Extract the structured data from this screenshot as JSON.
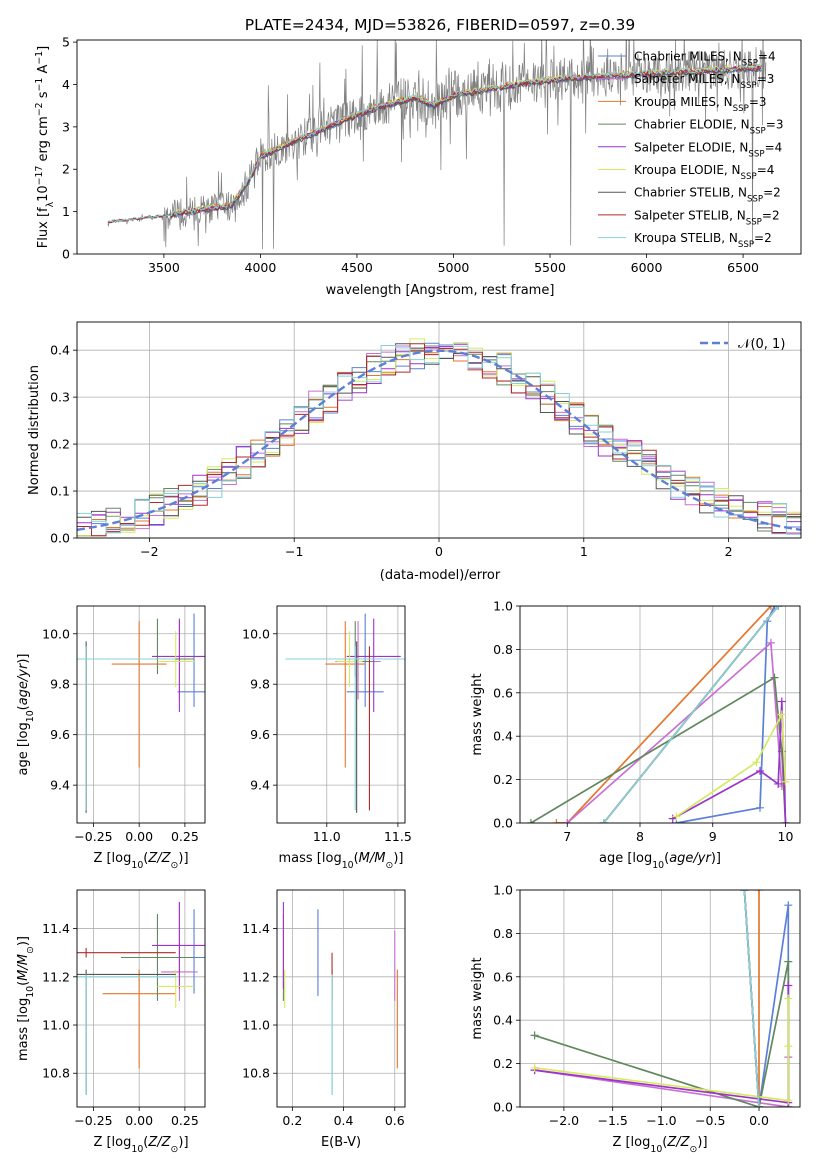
{
  "figure": {
    "title": "PLATE=2434, MJD=53826, FIBERID=0597, z=0.39"
  },
  "colors": [
    "#5b80d6",
    "#e3772e",
    "#c96fd6",
    "#62885e",
    "#9a35c9",
    "#d6ea61",
    "#555555",
    "#b02a2a",
    "#84d1d8"
  ],
  "chart_data": [
    {
      "id": "spectrum",
      "type": "line",
      "xlabel": "wavelength [Angstrom, rest frame]",
      "ylabel": "Flux [f_λ 10^-17 erg cm^-2 s^-1 A^-1]",
      "xlim": [
        3050,
        6800
      ],
      "ylim": [
        0,
        5.05
      ],
      "xticks": [
        3500,
        4000,
        4500,
        5000,
        5500,
        6000,
        6500
      ],
      "yticks": [
        0,
        1,
        2,
        3,
        4,
        5
      ],
      "legend_position": "right",
      "series": [
        {
          "name": "Chabrier MILES, N_SSP=4",
          "color": "#5b80d6"
        },
        {
          "name": "Salpeter MILES, N_SSP=3",
          "color": "#c96fd6"
        },
        {
          "name": "Kroupa MILES, N_SSP=3",
          "color": "#e3772e"
        },
        {
          "name": "Chabrier ELODIE, N_SSP=3",
          "color": "#62885e"
        },
        {
          "name": "Salpeter ELODIE, N_SSP=4",
          "color": "#9a35c9"
        },
        {
          "name": "Kroupa ELODIE, N_SSP=4",
          "color": "#d6ea61"
        },
        {
          "name": "Chabrier STELIB, N_SSP=2",
          "color": "#555555"
        },
        {
          "name": "Salpeter STELIB, N_SSP=2",
          "color": "#b02a2a"
        },
        {
          "name": "Kroupa STELIB, N_SSP=2",
          "color": "#84d1d8"
        }
      ],
      "continuum": {
        "x": [
          3200,
          3300,
          3500,
          3700,
          3850,
          3950,
          4000,
          4200,
          4400,
          4600,
          4800,
          4900,
          5000,
          5200,
          5400,
          5600,
          5800,
          6000,
          6200,
          6400,
          6600
        ],
        "y": [
          0.75,
          0.8,
          0.9,
          1.05,
          1.15,
          1.8,
          2.3,
          2.7,
          3.1,
          3.45,
          3.7,
          3.5,
          3.75,
          3.9,
          4.05,
          4.15,
          4.2,
          4.25,
          4.3,
          4.35,
          4.4
        ]
      }
    },
    {
      "id": "residuals",
      "type": "histogram",
      "xlabel": "(data-model)/error",
      "ylabel": "Normed distribution",
      "xlim": [
        -2.5,
        2.5
      ],
      "ylim": [
        0,
        0.46
      ],
      "xticks": [
        -2,
        -1,
        0,
        1,
        2
      ],
      "yticks": [
        0.0,
        0.1,
        0.2,
        0.3,
        0.4
      ],
      "bin_edges": [
        -2.5,
        -2.4,
        -2.3,
        -2.2,
        -2.1,
        -2.0,
        -1.9,
        -1.8,
        -1.7,
        -1.6,
        -1.5,
        -1.4,
        -1.3,
        -1.2,
        -1.1,
        -1.0,
        -0.9,
        -0.8,
        -0.7,
        -0.6,
        -0.5,
        -0.4,
        -0.3,
        -0.2,
        -0.1,
        0.0,
        0.1,
        0.2,
        0.3,
        0.4,
        0.5,
        0.6,
        0.7,
        0.8,
        0.9,
        1.0,
        1.1,
        1.2,
        1.3,
        1.4,
        1.5,
        1.6,
        1.7,
        1.8,
        1.9,
        2.0,
        2.1,
        2.2,
        2.3,
        2.4,
        2.5
      ],
      "gaussian_legend": "𝒩(0, 1)"
    },
    {
      "id": "age_vs_Z",
      "type": "errorbar",
      "xlabel": "Z [log10(Z/Z⊙)]",
      "ylabel": "age  [log10(age/yr)]",
      "xlim": [
        -0.34,
        0.36
      ],
      "ylim": [
        9.25,
        10.11
      ],
      "xticks": [
        -0.25,
        0.0,
        0.25
      ],
      "xticklabels": [
        "−0.25",
        "0.00",
        "0.25"
      ],
      "yticks": [
        9.4,
        9.6,
        9.8,
        10.0
      ],
      "points": [
        {
          "x": 0.3,
          "y": 9.77,
          "xerr": 0.09,
          "yerr_lo": 0.06,
          "yerr_hi": 0.31,
          "color": "#5b80d6"
        },
        {
          "x": 0.0,
          "y": 9.88,
          "xerr": 0.15,
          "yerr_lo": 0.41,
          "yerr_hi": 0.17,
          "color": "#e3772e"
        },
        {
          "x": 0.22,
          "y": 9.89,
          "xerr": 0.08,
          "yerr_lo": 0.15,
          "yerr_hi": 0.16,
          "color": "#c96fd6"
        },
        {
          "x": 0.1,
          "y": 9.9,
          "xerr": 0.2,
          "yerr_lo": 0.06,
          "yerr_hi": 0.16,
          "color": "#62885e"
        },
        {
          "x": 0.22,
          "y": 9.91,
          "xerr": 0.15,
          "yerr_lo": 0.22,
          "yerr_hi": 0.15,
          "color": "#9a35c9"
        },
        {
          "x": 0.2,
          "y": 9.89,
          "xerr": 0.1,
          "yerr_lo": 0.1,
          "yerr_hi": 0.12,
          "color": "#d6ea61"
        },
        {
          "x": -0.29,
          "y": 9.9,
          "xerr": 0.5,
          "yerr_lo": 0.61,
          "yerr_hi": 0.07,
          "color": "#555555"
        },
        {
          "x": -0.29,
          "y": 9.9,
          "xerr": 0.49,
          "yerr_lo": 0.6,
          "yerr_hi": 0.05,
          "color": "#b02a2a"
        },
        {
          "x": -0.29,
          "y": 9.9,
          "xerr": 0.49,
          "yerr_lo": 0.6,
          "yerr_hi": 0.05,
          "color": "#84d1d8"
        }
      ]
    },
    {
      "id": "age_vs_mass",
      "type": "errorbar",
      "xlabel": "mass [log10(M/M⊙)]",
      "xlim": [
        10.65,
        11.55
      ],
      "ylim": [
        9.25,
        10.11
      ],
      "xticks": [
        11.0,
        11.5
      ],
      "xticklabels": [
        "11.0",
        "11.5"
      ],
      "yticks": [
        9.4,
        9.6,
        9.8,
        10.0
      ],
      "points": [
        {
          "x": 11.27,
          "y": 9.77,
          "xerr": 0.13,
          "yerr_lo": 0.06,
          "yerr_hi": 0.31,
          "color": "#5b80d6"
        },
        {
          "x": 11.13,
          "y": 9.88,
          "xerr": 0.14,
          "yerr_lo": 0.41,
          "yerr_hi": 0.17,
          "color": "#e3772e"
        },
        {
          "x": 11.22,
          "y": 9.89,
          "xerr": 0.16,
          "yerr_lo": 0.15,
          "yerr_hi": 0.16,
          "color": "#c96fd6"
        },
        {
          "x": 11.2,
          "y": 9.89,
          "xerr": 0.12,
          "yerr_lo": 0.06,
          "yerr_hi": 0.16,
          "color": "#62885e"
        },
        {
          "x": 11.33,
          "y": 9.91,
          "xerr": 0.19,
          "yerr_lo": 0.22,
          "yerr_hi": 0.15,
          "color": "#9a35c9"
        },
        {
          "x": 11.16,
          "y": 9.89,
          "xerr": 0.09,
          "yerr_lo": 0.1,
          "yerr_hi": 0.12,
          "color": "#d6ea61"
        },
        {
          "x": 11.21,
          "y": 9.9,
          "xerr": 0.5,
          "yerr_lo": 0.61,
          "yerr_hi": 0.07,
          "color": "#555555"
        },
        {
          "x": 11.3,
          "y": 9.9,
          "xerr": 0.5,
          "yerr_lo": 0.6,
          "yerr_hi": 0.05,
          "color": "#b02a2a"
        },
        {
          "x": 11.2,
          "y": 9.9,
          "xerr": 0.49,
          "yerr_lo": 0.6,
          "yerr_hi": 0.05,
          "color": "#84d1d8"
        }
      ]
    },
    {
      "id": "weight_vs_age",
      "type": "line",
      "xlabel": "age  [log10(age/yr)]",
      "ylabel": "mass weight",
      "xlim": [
        6.35,
        10.2
      ],
      "ylim": [
        0,
        1
      ],
      "xticks": [
        7,
        8,
        9,
        10
      ],
      "yticks": [
        0.0,
        0.2,
        0.4,
        0.6,
        0.8,
        1.0
      ],
      "series": [
        {
          "color": "#5b80d6",
          "x": [
            8.5,
            9.65,
            9.75,
            9.85
          ],
          "y": [
            0.0,
            0.07,
            0.93,
            1.0
          ]
        },
        {
          "color": "#e3772e",
          "x": [
            6.85,
            7.0,
            9.8
          ],
          "y": [
            0.0,
            0.0,
            1.0
          ]
        },
        {
          "color": "#c96fd6",
          "x": [
            7.0,
            9.8,
            9.95
          ],
          "y": [
            0.0,
            0.83,
            0.17
          ]
        },
        {
          "color": "#62885e",
          "x": [
            6.5,
            9.85,
            9.95,
            10.0
          ],
          "y": [
            0.0,
            0.67,
            0.33,
            0.0
          ]
        },
        {
          "color": "#9a35c9",
          "x": [
            8.45,
            9.65,
            9.9,
            9.95,
            10.0
          ],
          "y": [
            0.02,
            0.24,
            0.18,
            0.56,
            0.0
          ]
        },
        {
          "color": "#d6ea61",
          "x": [
            8.5,
            9.6,
            9.95,
            10.0
          ],
          "y": [
            0.03,
            0.28,
            0.5,
            0.19
          ]
        },
        {
          "color": "#555555",
          "x": [
            7.5,
            9.9
          ],
          "y": [
            0.0,
            1.0
          ]
        },
        {
          "color": "#b02a2a",
          "x": [
            7.5,
            9.9
          ],
          "y": [
            0.0,
            1.0
          ]
        },
        {
          "color": "#84d1d8",
          "x": [
            7.5,
            9.9
          ],
          "y": [
            0.0,
            1.0
          ]
        }
      ]
    },
    {
      "id": "mass_vs_Z",
      "type": "errorbar",
      "xlabel": "Z [log10(Z/Z⊙)]",
      "ylabel": "mass [log10(M/M⊙)]",
      "xlim": [
        -0.34,
        0.36
      ],
      "ylim": [
        10.66,
        11.56
      ],
      "xticks": [
        -0.25,
        0.0,
        0.25
      ],
      "xticklabels": [
        "−0.25",
        "0.00",
        "0.25"
      ],
      "yticks": [
        10.8,
        11.0,
        11.2,
        11.4
      ],
      "points": [
        {
          "x": 0.3,
          "y": 11.28,
          "xerr": 0.06,
          "yerr_lo": 0.15,
          "yerr_hi": 0.2,
          "color": "#5b80d6"
        },
        {
          "x": 0.0,
          "y": 11.13,
          "xerr": 0.2,
          "yerr_lo": 0.31,
          "yerr_hi": 0.1,
          "color": "#e3772e"
        },
        {
          "x": 0.22,
          "y": 11.22,
          "xerr": 0.1,
          "yerr_lo": 0.12,
          "yerr_hi": 0.29,
          "color": "#c96fd6"
        },
        {
          "x": 0.1,
          "y": 11.28,
          "xerr": 0.2,
          "yerr_lo": 0.18,
          "yerr_hi": 0.18,
          "color": "#62885e"
        },
        {
          "x": 0.22,
          "y": 11.33,
          "xerr": 0.15,
          "yerr_lo": 0.18,
          "yerr_hi": 0.18,
          "color": "#9a35c9"
        },
        {
          "x": 0.2,
          "y": 11.16,
          "xerr": 0.1,
          "yerr_lo": 0.09,
          "yerr_hi": 0.07,
          "color": "#d6ea61"
        },
        {
          "x": -0.29,
          "y": 11.21,
          "xerr": 0.49,
          "yerr_lo": 0.5,
          "yerr_hi": 0.02,
          "color": "#555555"
        },
        {
          "x": -0.29,
          "y": 11.3,
          "xerr": 0.49,
          "yerr_lo": 0.02,
          "yerr_hi": 0.02,
          "color": "#b02a2a"
        },
        {
          "x": -0.29,
          "y": 11.2,
          "xerr": 0.49,
          "yerr_lo": 0.49,
          "yerr_hi": 0.01,
          "color": "#84d1d8"
        }
      ]
    },
    {
      "id": "mass_vs_EBV",
      "type": "errorbar",
      "xlabel": "E(B-V)",
      "xlim": [
        0.14,
        0.64
      ],
      "ylim": [
        10.66,
        11.56
      ],
      "xticks": [
        0.2,
        0.4,
        0.6
      ],
      "xticklabels": [
        "0.2",
        "0.4",
        "0.6"
      ],
      "yticks": [
        10.8,
        11.0,
        11.2,
        11.4
      ],
      "points": [
        {
          "x": 0.3,
          "y": 11.28,
          "yerr_lo": 0.16,
          "yerr_hi": 0.2,
          "color": "#5b80d6"
        },
        {
          "x": 0.61,
          "y": 11.13,
          "yerr_lo": 0.31,
          "yerr_hi": 0.1,
          "color": "#e3772e"
        },
        {
          "x": 0.6,
          "y": 11.22,
          "yerr_lo": 0.12,
          "yerr_hi": 0.17,
          "color": "#c96fd6"
        },
        {
          "x": 0.165,
          "y": 11.28,
          "yerr_lo": 0.18,
          "yerr_hi": 0.18,
          "color": "#62885e"
        },
        {
          "x": 0.165,
          "y": 11.33,
          "yerr_lo": 0.18,
          "yerr_hi": 0.18,
          "color": "#9a35c9"
        },
        {
          "x": 0.17,
          "y": 11.16,
          "yerr_lo": 0.09,
          "yerr_hi": 0.07,
          "color": "#d6ea61"
        },
        {
          "x": 0.355,
          "y": 11.21,
          "yerr_lo": 0.5,
          "yerr_hi": 0.02,
          "color": "#555555"
        },
        {
          "x": 0.355,
          "y": 11.2,
          "yerr_lo": 0.1,
          "yerr_hi": 0.1,
          "color": "#b02a2a"
        },
        {
          "x": 0.355,
          "y": 11.2,
          "yerr_lo": 0.49,
          "yerr_hi": 0.01,
          "color": "#84d1d8"
        }
      ]
    },
    {
      "id": "weight_vs_Z",
      "type": "line",
      "xlabel": "Z [log10(Z/Z⊙)]",
      "ylabel": "mass weight",
      "xlim": [
        -2.45,
        0.42
      ],
      "ylim": [
        0,
        1
      ],
      "xticks": [
        -2.0,
        -1.5,
        -1.0,
        -0.5,
        0.0
      ],
      "xticklabels": [
        "−2.0",
        "−1.5",
        "−1.0",
        "−0.5",
        "0.0"
      ],
      "yticks": [
        0.0,
        0.2,
        0.4,
        0.6,
        0.8,
        1.0
      ],
      "series": [
        {
          "color": "#5b80d6",
          "x": [
            -0.15,
            0.0,
            0.3,
            0.3
          ],
          "y": [
            1.0,
            0.0,
            0.93,
            0.0
          ]
        },
        {
          "color": "#e3772e",
          "x": [
            0.0,
            0.0
          ],
          "y": [
            1.0,
            0.0
          ]
        },
        {
          "color": "#c96fd6",
          "x": [
            -2.3,
            0.3,
            0.3
          ],
          "y": [
            0.17,
            0.0,
            0.23
          ]
        },
        {
          "color": "#62885e",
          "x": [
            -2.3,
            0.0,
            0.3,
            0.3
          ],
          "y": [
            0.33,
            0.0,
            0.67,
            0.0
          ]
        },
        {
          "color": "#9a35c9",
          "x": [
            -2.3,
            0.3,
            0.3
          ],
          "y": [
            0.17,
            0.02,
            0.56
          ]
        },
        {
          "color": "#d6ea61",
          "x": [
            -2.3,
            0.3,
            0.3,
            0.3
          ],
          "y": [
            0.18,
            0.03,
            0.5,
            0.28
          ]
        },
        {
          "color": "#555555",
          "x": [
            -0.15,
            0.0
          ],
          "y": [
            1.0,
            0.0
          ]
        },
        {
          "color": "#b02a2a",
          "x": [
            -0.15,
            0.0
          ],
          "y": [
            1.0,
            0.0
          ]
        },
        {
          "color": "#84d1d8",
          "x": [
            -0.15,
            0.0
          ],
          "y": [
            1.0,
            0.0
          ]
        }
      ]
    }
  ]
}
